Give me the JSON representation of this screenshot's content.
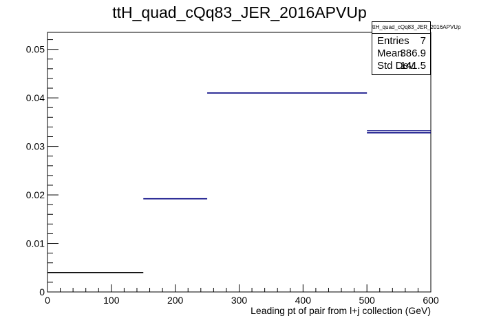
{
  "chart_data": {
    "type": "histogram",
    "title": "ttH_quad_cQq83_JER_2016APVUp",
    "xlabel": "Leading pt of pair from l+j collection (GeV)",
    "ylabel": "",
    "xlim": [
      0,
      600
    ],
    "ylim": [
      0,
      0.0535
    ],
    "x_ticks": [
      "0",
      "100",
      "200",
      "300",
      "400",
      "500",
      "600"
    ],
    "y_ticks": [
      "0",
      "0.01",
      "0.02",
      "0.03",
      "0.04",
      "0.05"
    ],
    "bins": [
      {
        "x0": 0,
        "x1": 150,
        "value": 0.004,
        "color": "#000000"
      },
      {
        "x0": 150,
        "x1": 250,
        "value": 0.0192,
        "color": "#000080"
      },
      {
        "x0": 250,
        "x1": 500,
        "value": 0.041,
        "color": "#000080"
      },
      {
        "x0": 500,
        "x1": 600,
        "value": 0.0328,
        "color": "#000080",
        "double": true
      }
    ],
    "grid": false
  },
  "stats": {
    "name": "ttH_quad_cQq83_JER_2016APVUp",
    "entries_label": "Entries",
    "entries": "7",
    "mean_label": "Mean",
    "mean": "386.9",
    "std_label": "Std Dev",
    "std": "141.5"
  }
}
